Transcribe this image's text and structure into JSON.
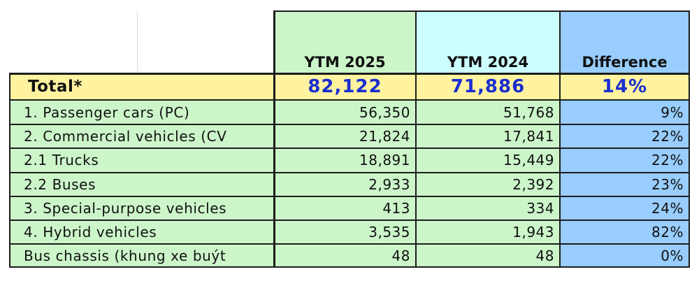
{
  "colors": {
    "label_fill": "#ccf5c9",
    "ytm2025_fill": "#ccf5c9",
    "ytm2024_fill": "#ccf5c9",
    "ytm2024_header_fill": "#ccfdff",
    "difference_fill": "#98cdfd",
    "total_fill": "#fff3a0",
    "total_text": "#1a2ed0",
    "grid": "#1c1c1c"
  },
  "headers": {
    "ytm2025": "YTM 2025",
    "ytm2024": "YTM 2024",
    "difference": "Difference"
  },
  "total": {
    "label": "Total*",
    "ytm2025": "82,122",
    "ytm2024": "71,886",
    "difference": "14%"
  },
  "rows": [
    {
      "label": "1. Passenger cars (PC)",
      "ytm2025": "56,350",
      "ytm2024": "51,768",
      "difference": "9%"
    },
    {
      "label": "2. Commercial vehicles (CV",
      "ytm2025": "21,824",
      "ytm2024": "17,841",
      "difference": "22%"
    },
    {
      "label": "2.1 Trucks",
      "ytm2025": "18,891",
      "ytm2024": "15,449",
      "difference": "22%"
    },
    {
      "label": "2.2 Buses",
      "ytm2025": "2,933",
      "ytm2024": "2,392",
      "difference": "23%"
    },
    {
      "label": "3. Special-purpose vehicles",
      "ytm2025": "413",
      "ytm2024": "334",
      "difference": "24%"
    },
    {
      "label": "4. Hybrid vehicles",
      "ytm2025": "3,535",
      "ytm2024": "1,943",
      "difference": "82%"
    },
    {
      "label": "Bus chassis (khung xe buýt",
      "ytm2025": "48",
      "ytm2024": "48",
      "difference": "0%"
    }
  ]
}
